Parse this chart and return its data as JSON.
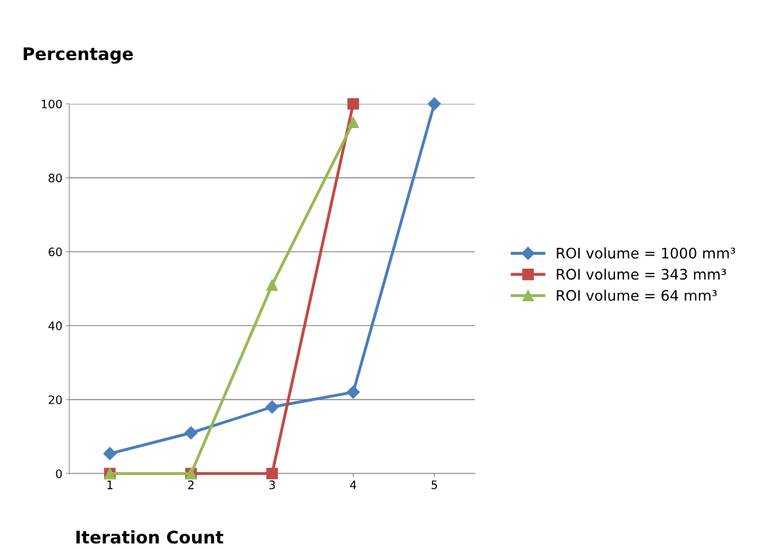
{
  "chart_data": {
    "type": "line",
    "ylabel": "Percentage",
    "xlabel": "Iteration Count",
    "categories": [
      "1",
      "2",
      "3",
      "4",
      "5"
    ],
    "series": [
      {
        "name": "ROI volume = 1000 mm³",
        "color": "#4a7ebb",
        "marker": "diamond",
        "values": [
          5.4,
          11,
          18,
          22,
          100
        ]
      },
      {
        "name": "ROI volume = 343 mm³",
        "color": "#be4b48",
        "marker": "square",
        "values": [
          0,
          0,
          0,
          100,
          null
        ]
      },
      {
        "name": "ROI volume = 64 mm³",
        "color": "#98b954",
        "marker": "triangle",
        "values": [
          0,
          0,
          51,
          95,
          null
        ]
      }
    ],
    "ylim": [
      0,
      100
    ],
    "yticks": [
      0,
      20,
      40,
      60,
      80,
      100
    ],
    "grid": "y",
    "legend": "right",
    "line_style": "solid"
  }
}
